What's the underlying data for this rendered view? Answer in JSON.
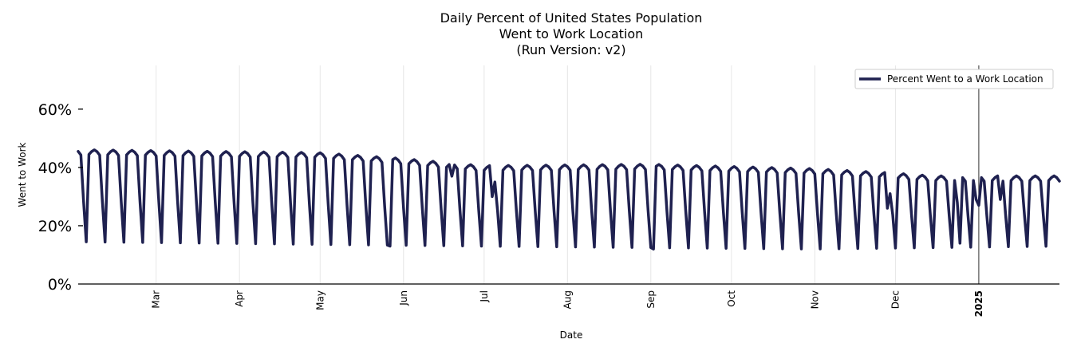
{
  "chart_data": {
    "type": "line",
    "title": [
      "Daily Percent of United States Population",
      "Went to Work Location",
      "(Run Version: v2)"
    ],
    "xlabel": "Date",
    "ylabel": "Went to Work",
    "ylim": [
      0,
      75
    ],
    "yticks": [
      0,
      20,
      40,
      60
    ],
    "ytick_labels": [
      "0%",
      "20%",
      "40%",
      "60%"
    ],
    "x_start_date": "2024-02-01",
    "x_end_date": "2025-01-31",
    "month_ticks": [
      {
        "label": "Mar",
        "date": "2024-03-01",
        "bold": false
      },
      {
        "label": "Apr",
        "date": "2024-04-01",
        "bold": false
      },
      {
        "label": "May",
        "date": "2024-05-01",
        "bold": false
      },
      {
        "label": "Jun",
        "date": "2024-06-01",
        "bold": false
      },
      {
        "label": "Jul",
        "date": "2024-07-01",
        "bold": false
      },
      {
        "label": "Aug",
        "date": "2024-08-01",
        "bold": false
      },
      {
        "label": "Sep",
        "date": "2024-09-01",
        "bold": false
      },
      {
        "label": "Oct",
        "date": "2024-10-01",
        "bold": false
      },
      {
        "label": "Nov",
        "date": "2024-11-01",
        "bold": false
      },
      {
        "label": "Dec",
        "date": "2024-12-01",
        "bold": false
      },
      {
        "label": "2025",
        "date": "2025-01-01",
        "bold": true
      }
    ],
    "vline_date": "2025-01-01",
    "legend_placement": "top-right",
    "series": [
      {
        "name": "Percent Went to a Work Location",
        "color": "#1f2150",
        "weekday_level_anchors": [
          {
            "date": "2024-02-01",
            "value": 45.5
          },
          {
            "date": "2024-03-15",
            "value": 45.0
          },
          {
            "date": "2024-04-30",
            "value": 44.5
          },
          {
            "date": "2024-05-31",
            "value": 42.5
          },
          {
            "date": "2024-06-30",
            "value": 40.0
          },
          {
            "date": "2024-08-31",
            "value": 40.5
          },
          {
            "date": "2024-10-31",
            "value": 39.0
          },
          {
            "date": "2024-11-30",
            "value": 37.5
          },
          {
            "date": "2024-12-15",
            "value": 36.5
          },
          {
            "date": "2025-01-31",
            "value": 36.5
          }
        ],
        "weekend_level_anchors": [
          {
            "date": "2024-02-01",
            "value": 14.5
          },
          {
            "date": "2024-06-30",
            "value": 13.0
          },
          {
            "date": "2024-10-31",
            "value": 12.0
          },
          {
            "date": "2025-01-31",
            "value": 13.0
          }
        ],
        "holiday_overrides": [
          {
            "date": "2024-05-27",
            "value": 13.0
          },
          {
            "date": "2024-06-19",
            "value": 37.0
          },
          {
            "date": "2024-07-04",
            "value": 30.0
          },
          {
            "date": "2024-07-05",
            "value": 35.0
          },
          {
            "date": "2024-09-02",
            "value": 12.0
          },
          {
            "date": "2024-11-28",
            "value": 26.0
          },
          {
            "date": "2024-11-29",
            "value": 31.0
          },
          {
            "date": "2024-12-24",
            "value": 28.0
          },
          {
            "date": "2024-12-25",
            "value": 14.0
          },
          {
            "date": "2024-12-31",
            "value": 29.0
          },
          {
            "date": "2025-01-01",
            "value": 27.0
          },
          {
            "date": "2025-01-09",
            "value": 29.0
          }
        ]
      }
    ]
  }
}
